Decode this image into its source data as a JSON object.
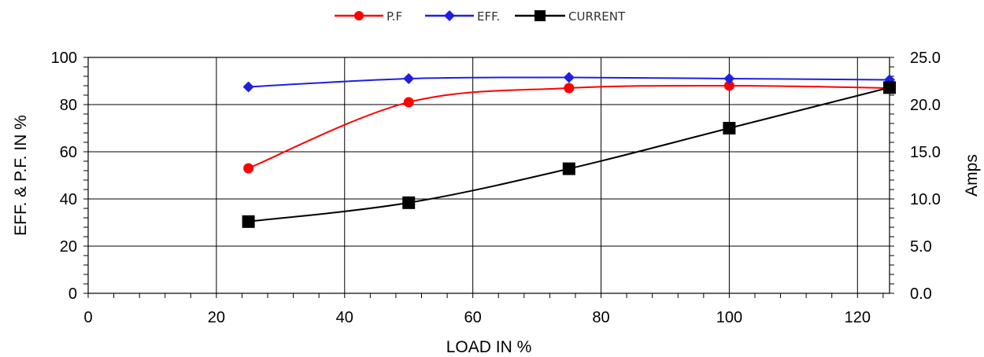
{
  "chart_data": {
    "type": "line",
    "x": [
      25,
      50,
      75,
      100,
      125
    ],
    "xlabel": "LOAD IN %",
    "ylabel": "EFF. & P.F. IN %",
    "y2label": "Amps",
    "xlim": [
      0,
      125
    ],
    "ylim": [
      0,
      100
    ],
    "y2lim": [
      0,
      25
    ],
    "x_ticks": [
      "0",
      "20",
      "40",
      "60",
      "80",
      "100",
      "120"
    ],
    "y_ticks": [
      "0",
      "20",
      "40",
      "60",
      "80",
      "100"
    ],
    "y2_ticks": [
      "0.0",
      "5.0",
      "10.0",
      "15.0",
      "20.0",
      "25.0"
    ],
    "grid": true,
    "legend_position": "top-center",
    "series": [
      {
        "name": "P.F",
        "axis": "left",
        "marker": "circle",
        "color": "#ff0000",
        "values": [
          53,
          81,
          87,
          88,
          87
        ]
      },
      {
        "name": "EFF.",
        "axis": "left",
        "marker": "diamond",
        "color": "#1f1fe0",
        "values": [
          87.5,
          91,
          91.5,
          91,
          90.5
        ]
      },
      {
        "name": "CURRENT",
        "axis": "right",
        "marker": "square",
        "color": "#000000",
        "values": [
          7.6,
          9.6,
          13.2,
          17.5,
          21.8
        ]
      }
    ]
  }
}
